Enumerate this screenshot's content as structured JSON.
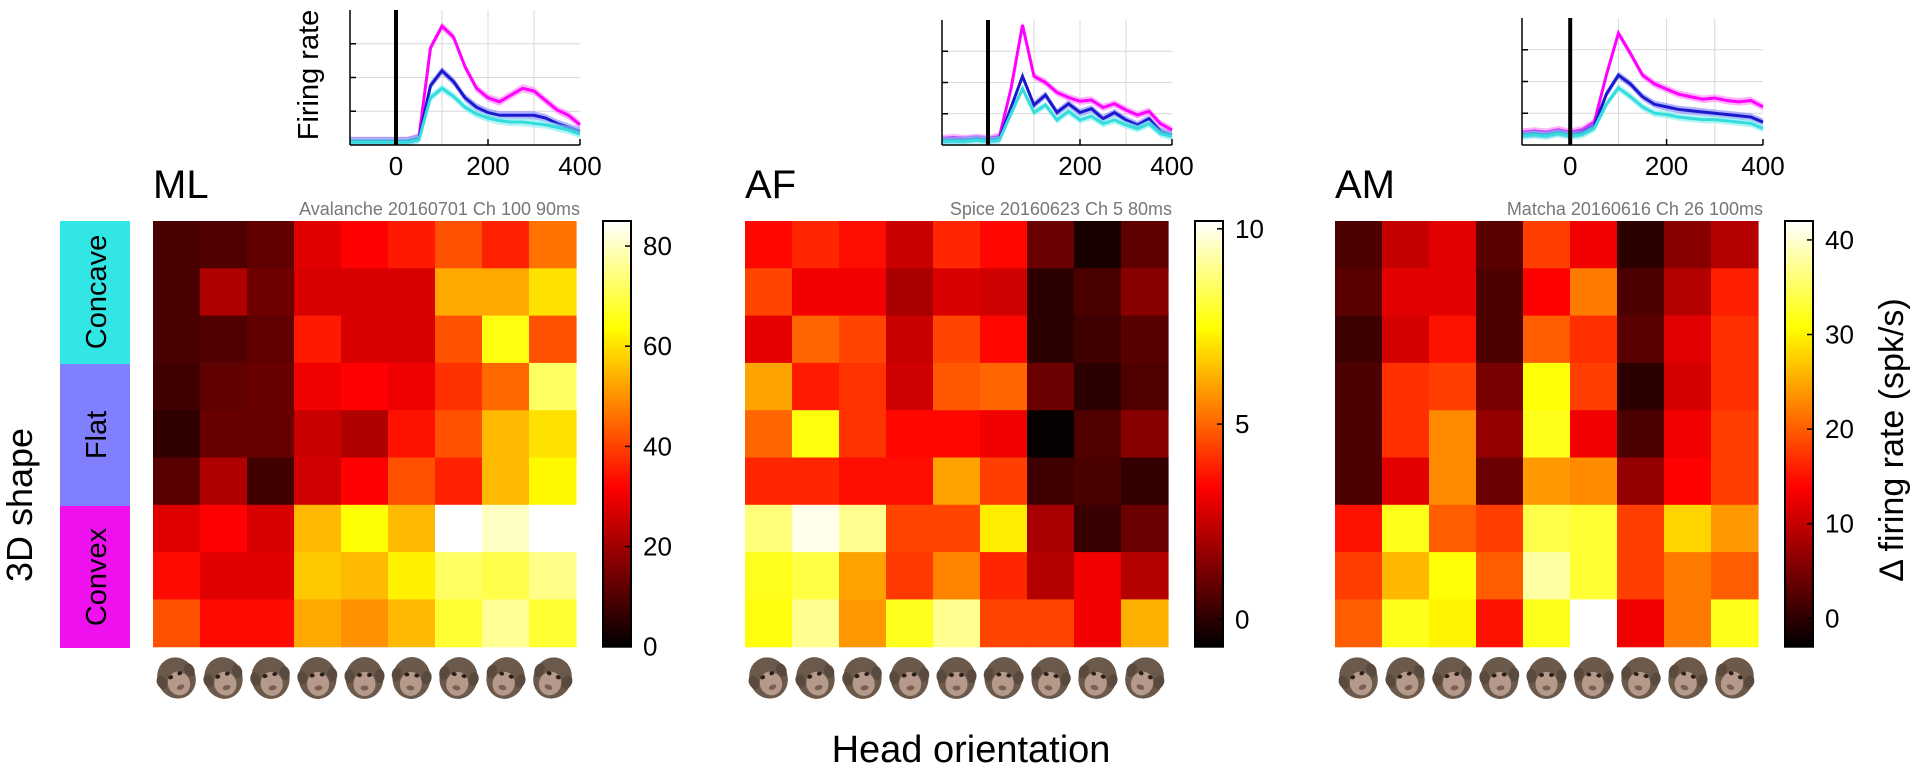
{
  "figure": {
    "y_axis_label": "3D shape",
    "x_axis_label": "Head orientation",
    "colorbar_label": "Δ firing rate (spk/s)",
    "shape_groups": [
      {
        "label": "Concave",
        "color": "#33e6e6"
      },
      {
        "label": "Flat",
        "color": "#8080ff"
      },
      {
        "label": "Convex",
        "color": "#ee11ee"
      }
    ],
    "head_icon_name": "monkey-head-icon",
    "line_colors": {
      "top": "#ff00ff",
      "middle": "#1a1acc",
      "bottom": "#33dddd"
    }
  },
  "chart_data": [
    {
      "type": "heatmap",
      "panel": "ML",
      "caption": "Avalanche 20160701 Ch 100 90ms",
      "colorbar": {
        "ticks": [
          0,
          20,
          40,
          60,
          80
        ],
        "range": [
          0,
          85
        ]
      },
      "rows": [
        "Concave",
        "Concave",
        "Concave",
        "Flat",
        "Flat",
        "Flat",
        "Convex",
        "Convex",
        "Convex"
      ],
      "columns": 9,
      "values": [
        [
          9,
          10,
          12,
          28,
          32,
          35,
          42,
          36,
          46
        ],
        [
          9,
          22,
          14,
          27,
          27,
          27,
          53,
          53,
          60
        ],
        [
          9,
          10,
          12,
          35,
          27,
          27,
          42,
          65,
          42
        ],
        [
          8,
          12,
          13,
          30,
          32,
          30,
          38,
          45,
          72
        ],
        [
          6,
          13,
          13,
          25,
          22,
          34,
          42,
          55,
          60
        ],
        [
          11,
          22,
          8,
          26,
          32,
          42,
          36,
          55,
          63
        ],
        [
          28,
          32,
          27,
          55,
          64,
          55,
          85,
          80,
          85
        ],
        [
          33,
          28,
          28,
          57,
          55,
          62,
          72,
          70,
          75
        ],
        [
          42,
          33,
          33,
          53,
          50,
          55,
          68,
          76,
          68
        ]
      ],
      "psth": {
        "ylabel": "Firing rate",
        "x_ticks": [
          0,
          200,
          400
        ],
        "xlim": [
          -100,
          400
        ],
        "ylim": [
          0,
          100
        ],
        "x": [
          -100,
          -75,
          -50,
          -25,
          0,
          25,
          50,
          75,
          100,
          125,
          150,
          175,
          200,
          225,
          250,
          275,
          300,
          325,
          350,
          375,
          400
        ],
        "series": [
          {
            "values": [
              3,
              3,
              3,
              3,
              3,
              3,
              6,
              72,
              88,
              80,
              58,
              42,
              35,
              32,
              37,
              42,
              40,
              33,
              26,
              22,
              15
            ]
          },
          {
            "values": [
              3,
              3,
              3,
              3,
              3,
              3,
              5,
              44,
              55,
              47,
              35,
              28,
              24,
              22,
              22,
              22,
              22,
              20,
              16,
              13,
              10
            ]
          },
          {
            "values": [
              2,
              2,
              2,
              2,
              2,
              2,
              4,
              35,
              42,
              36,
              28,
              23,
              20,
              18,
              17,
              17,
              16,
              15,
              13,
              11,
              8
            ]
          }
        ]
      }
    },
    {
      "type": "heatmap",
      "panel": "AF",
      "caption": "Spice 20160623 Ch 5 80ms",
      "colorbar": {
        "ticks": [
          0,
          5,
          10
        ],
        "range": [
          -0.7,
          10.2
        ]
      },
      "rows": [
        "Concave",
        "Concave",
        "Concave",
        "Flat",
        "Flat",
        "Flat",
        "Convex",
        "Convex",
        "Convex"
      ],
      "columns": 9,
      "values": [
        [
          3.5,
          4.0,
          3.6,
          2.5,
          4.0,
          3.5,
          1.0,
          -0.3,
          0.8
        ],
        [
          4.5,
          3.2,
          3.2,
          2.0,
          2.8,
          2.6,
          0.0,
          0.5,
          1.5
        ],
        [
          3.0,
          5.0,
          4.5,
          2.5,
          4.5,
          3.5,
          0.0,
          0.3,
          0.7
        ],
        [
          6.0,
          3.8,
          4.2,
          2.6,
          4.8,
          5.0,
          1.0,
          0.0,
          0.6
        ],
        [
          5.0,
          7.6,
          4.2,
          3.5,
          3.5,
          3.2,
          -0.6,
          0.6,
          1.5
        ],
        [
          4.0,
          4.0,
          3.6,
          3.6,
          6.0,
          4.4,
          0.3,
          0.5,
          0.1
        ],
        [
          8.8,
          10.0,
          9.0,
          4.5,
          4.5,
          7.2,
          2.0,
          0.2,
          1.0
        ],
        [
          7.8,
          8.2,
          6.0,
          4.3,
          5.5,
          4.0,
          2.2,
          3.2,
          2.2
        ],
        [
          7.6,
          9.0,
          5.8,
          7.8,
          9.0,
          4.5,
          4.5,
          3.2,
          6.2
        ]
      ],
      "psth": {
        "ylabel": "",
        "x_ticks": [
          0,
          200,
          400
        ],
        "xlim": [
          -100,
          400
        ],
        "ylim": [
          0,
          100
        ],
        "x": [
          -100,
          -75,
          -50,
          -25,
          0,
          25,
          50,
          75,
          100,
          125,
          150,
          175,
          200,
          225,
          250,
          275,
          300,
          325,
          350,
          375,
          400
        ],
        "series": [
          {
            "values": [
              5,
              6,
              5,
              6,
              5,
              7,
              45,
              96,
              55,
              50,
              42,
              38,
              35,
              36,
              30,
              33,
              28,
              24,
              27,
              17,
              12
            ]
          },
          {
            "values": [
              4,
              4,
              4,
              5,
              4,
              5,
              30,
              55,
              32,
              40,
              26,
              33,
              26,
              29,
              21,
              26,
              20,
              16,
              21,
              11,
              8
            ]
          },
          {
            "values": [
              3,
              3,
              3,
              4,
              3,
              4,
              25,
              45,
              26,
              32,
              20,
              27,
              20,
              23,
              17,
              20,
              16,
              13,
              17,
              9,
              7
            ]
          }
        ]
      }
    },
    {
      "type": "heatmap",
      "panel": "AM",
      "caption": "Matcha 20160616 Ch 26 100ms",
      "colorbar": {
        "ticks": [
          0,
          10,
          20,
          30,
          40
        ],
        "range": [
          -3,
          42
        ]
      },
      "rows": [
        "Concave",
        "Concave",
        "Concave",
        "Flat",
        "Flat",
        "Flat",
        "Convex",
        "Convex",
        "Convex"
      ],
      "columns": 9,
      "values": [
        [
          2,
          10,
          12,
          3,
          18,
          13,
          0,
          6,
          9
        ],
        [
          3,
          12,
          12,
          2,
          14,
          22,
          2,
          9,
          16
        ],
        [
          1,
          11,
          15,
          2,
          20,
          17,
          3,
          12,
          17
        ],
        [
          2,
          17,
          18,
          5,
          31,
          18,
          0,
          11,
          17
        ],
        [
          2,
          17,
          23,
          7,
          32,
          13,
          2,
          13,
          18
        ],
        [
          2,
          12,
          23,
          4,
          24,
          23,
          7,
          14,
          18
        ],
        [
          15,
          32,
          20,
          18,
          34,
          33,
          18,
          28,
          24
        ],
        [
          18,
          26,
          31,
          20,
          38,
          33,
          18,
          22,
          20
        ],
        [
          20,
          32,
          30,
          15,
          32,
          42,
          13,
          22,
          32
        ]
      ],
      "psth": {
        "ylabel": "",
        "x_ticks": [
          0,
          200,
          400
        ],
        "xlim": [
          -100,
          400
        ],
        "ylim": [
          0,
          100
        ],
        "x": [
          -100,
          -75,
          -50,
          -25,
          0,
          25,
          50,
          75,
          100,
          125,
          150,
          175,
          200,
          225,
          250,
          275,
          300,
          325,
          350,
          375,
          400
        ],
        "series": [
          {
            "values": [
              10,
              11,
              10,
              12,
              10,
              12,
              18,
              55,
              88,
              72,
              55,
              48,
              44,
              40,
              38,
              36,
              37,
              35,
              34,
              35,
              30
            ]
          },
          {
            "values": [
              8,
              9,
              8,
              10,
              8,
              10,
              15,
              40,
              55,
              48,
              38,
              32,
              30,
              28,
              27,
              26,
              25,
              24,
              23,
              22,
              18
            ]
          },
          {
            "values": [
              7,
              8,
              7,
              9,
              7,
              8,
              13,
              32,
              45,
              38,
              30,
              25,
              24,
              22,
              21,
              20,
              20,
              19,
              18,
              17,
              13
            ]
          }
        ]
      }
    }
  ]
}
